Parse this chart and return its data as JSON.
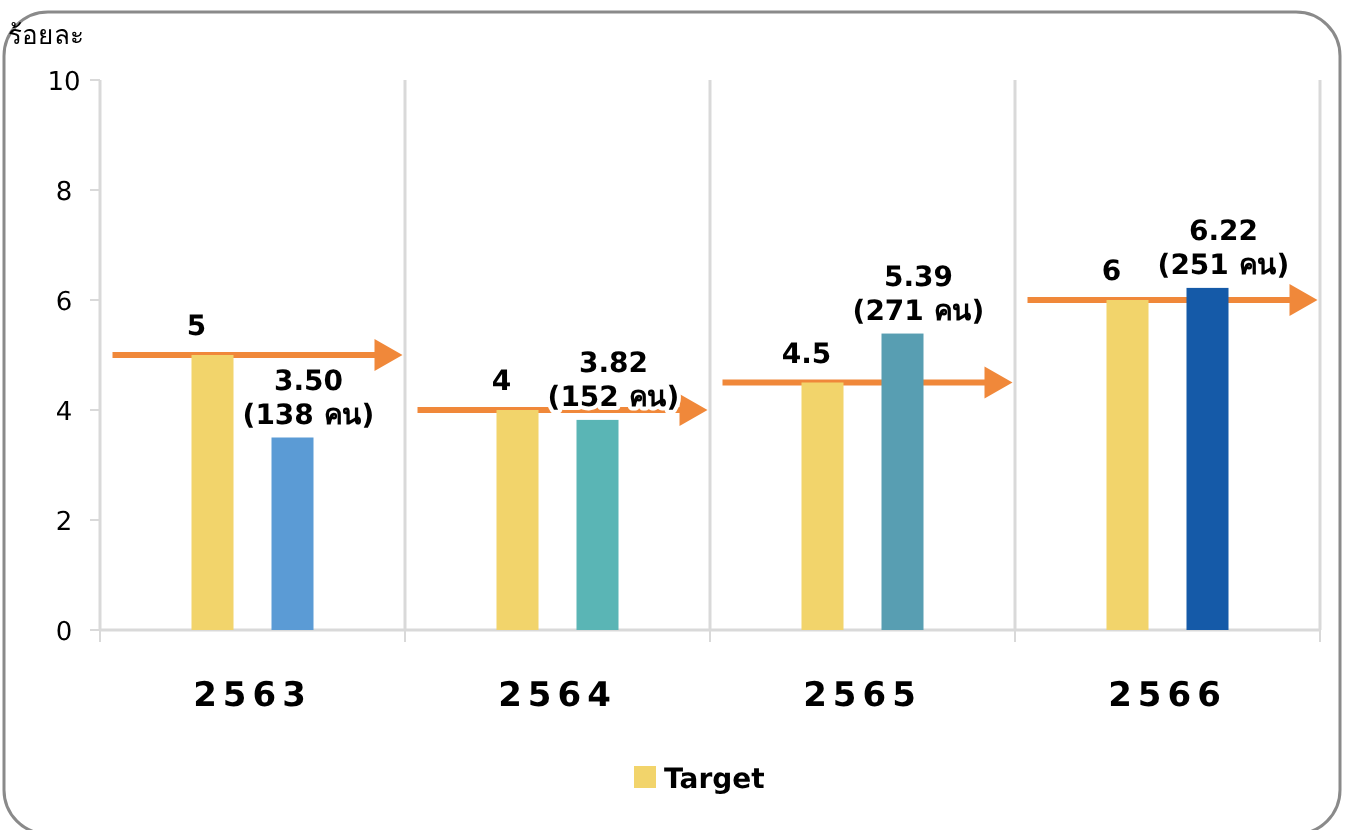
{
  "chart_data": {
    "type": "bar",
    "ylabel": "ร้อยละ",
    "categories": [
      "2563",
      "2564",
      "2565",
      "2566"
    ],
    "series": [
      {
        "name": "Target",
        "color": "#f2d46b",
        "values": [
          5,
          4,
          4.5,
          6
        ],
        "value_labels": [
          "5",
          "4",
          "4.5",
          "6"
        ]
      },
      {
        "colors": [
          "#5b9bd5",
          "#5ab5b5",
          "#589eb2",
          "#155aa8"
        ],
        "values": [
          3.5,
          3.82,
          5.39,
          6.22
        ],
        "value_labels": [
          "3.50\n(138 คน)",
          "3.82\n(152 คน)",
          "5.39\n(271 คน)",
          "6.22\n(251 คน)"
        ]
      }
    ],
    "ylim": [
      0,
      10
    ],
    "yticks": [
      0,
      2,
      4,
      6,
      8,
      10
    ],
    "grid": "x",
    "legend": "bottom"
  }
}
